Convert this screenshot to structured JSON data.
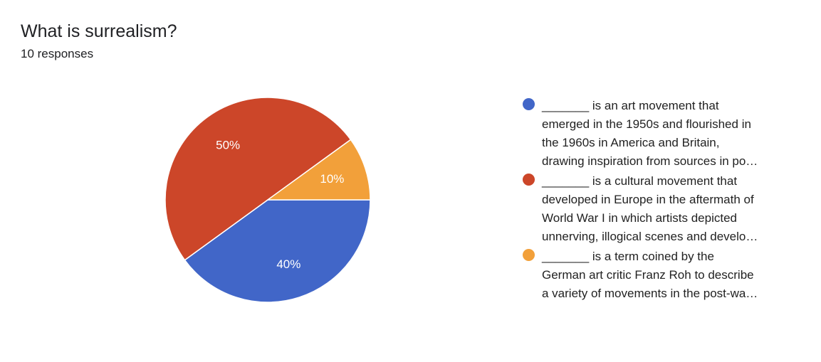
{
  "header": {
    "title": "What is surrealism?",
    "subtitle": "10 responses"
  },
  "chart_data": {
    "type": "pie",
    "title": "What is surrealism?",
    "slices": [
      {
        "label": "_______ is an art movement that emerged in the 1950s and flourished in the 1960s in America and Britain, drawing inspiration from sources in po…",
        "value": 40,
        "percent_label": "40%",
        "color": "#4166c8"
      },
      {
        "label": "_______ is a cultural movement that developed in Europe in the aftermath of World War I in which artists depicted unnerving, illogical scenes and develo…",
        "value": 50,
        "percent_label": "50%",
        "color": "#cc4629"
      },
      {
        "label": "_______ is a term coined by the German art critic Franz Roh to describe a variety of movements in the post-wa…",
        "value": 10,
        "percent_label": "10%",
        "color": "#f2a03a"
      }
    ],
    "legend_position": "right"
  },
  "legend": {
    "lines": [
      [
        "_______ is an art movement that",
        "emerged in the 1950s and flourished in",
        "the 1960s in America and Britain,",
        "drawing inspiration from sources in po…"
      ],
      [
        "_______ is a cultural movement that",
        "developed in Europe in the aftermath of",
        "World War I in which artists depicted",
        "unnerving, illogical scenes and develo…"
      ],
      [
        "_______ is a term coined by the",
        "German art critic Franz Roh to describe",
        "a variety of movements in the post-wa…"
      ]
    ]
  }
}
